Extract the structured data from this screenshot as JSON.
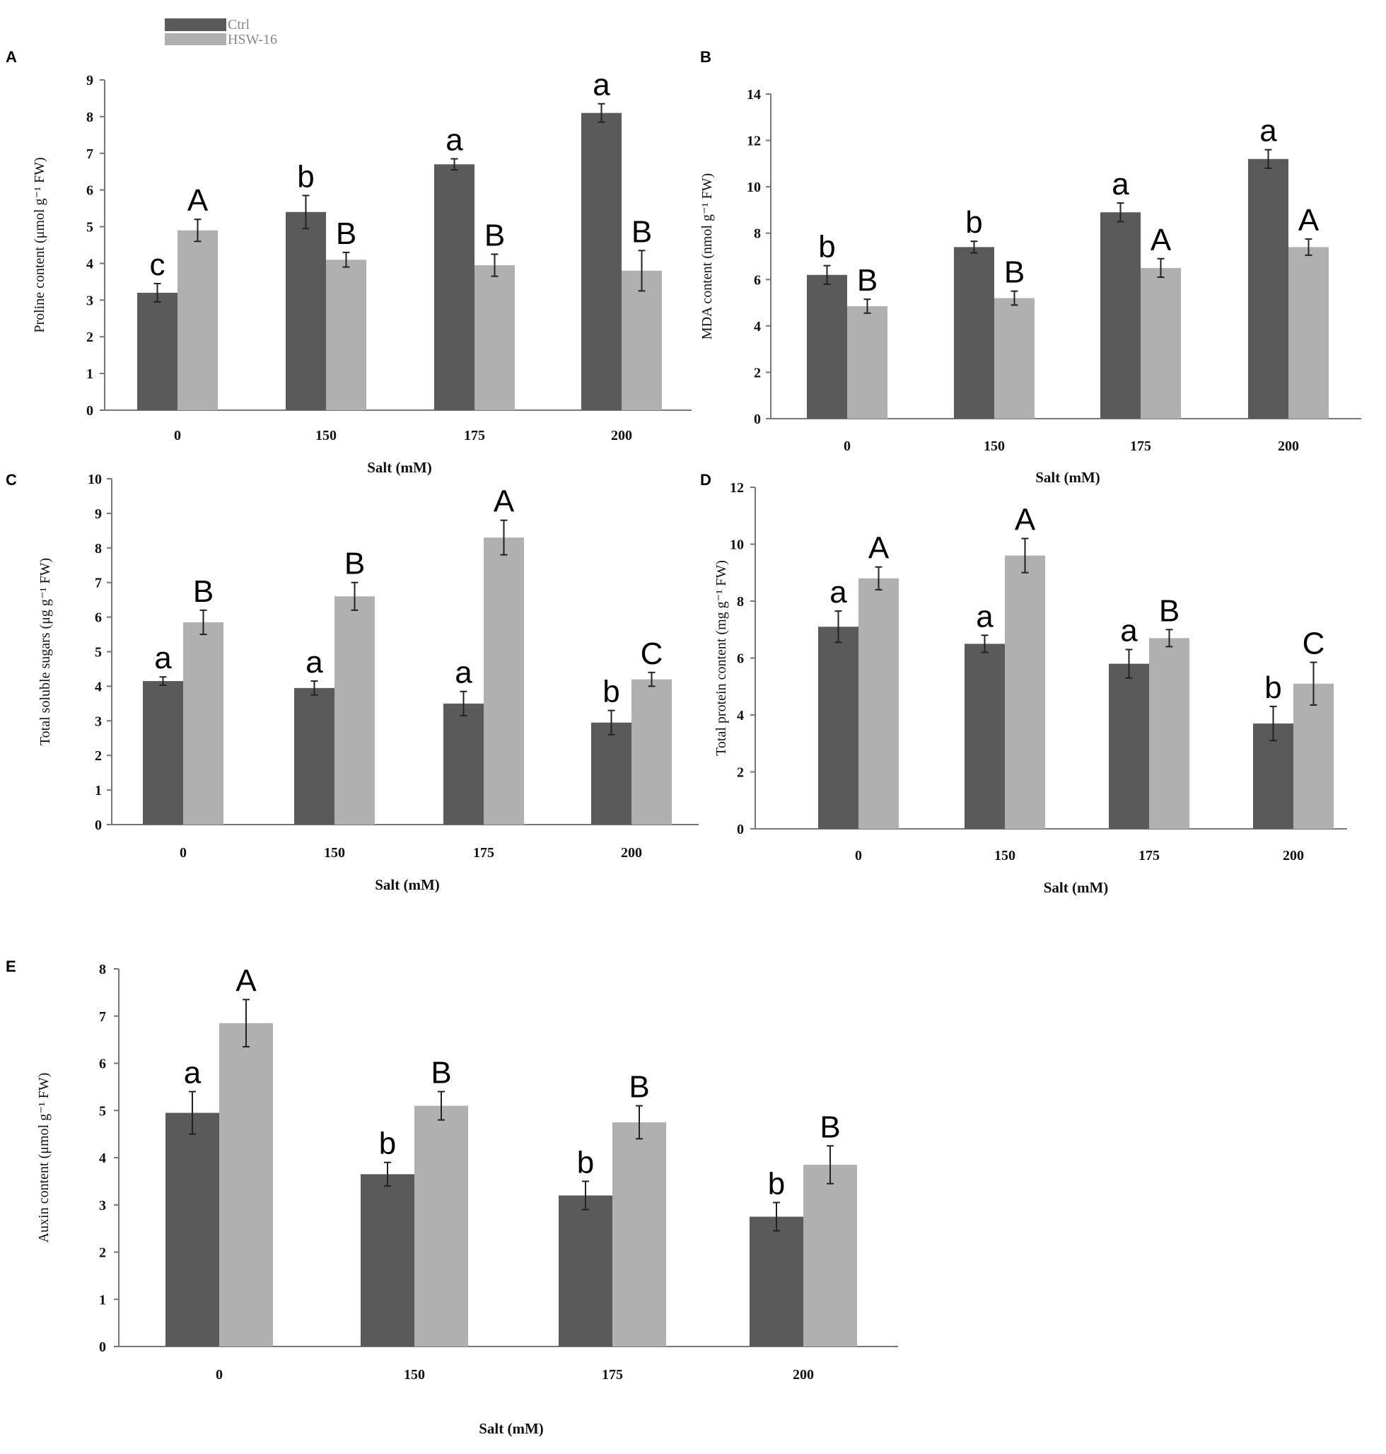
{
  "legend": {
    "series": [
      {
        "name": "Ctrl",
        "color": "#5a5a5a"
      },
      {
        "name": "HSW-16",
        "color": "#b0b0b0"
      }
    ]
  },
  "chart_data": [
    {
      "panel": "A",
      "type": "bar",
      "categories": [
        "0",
        "150",
        "175",
        "200"
      ],
      "xlabel": "Salt (mM)",
      "ylabel": "Proline content (μmol g⁻¹ FW)",
      "ylim": [
        0,
        9
      ],
      "ystep": 1,
      "series": [
        {
          "name": "Ctrl",
          "values": [
            3.2,
            5.4,
            6.7,
            8.1
          ],
          "errors": [
            0.25,
            0.45,
            0.15,
            0.25
          ],
          "letters": [
            "c",
            "b",
            "a",
            "a"
          ]
        },
        {
          "name": "HSW-16",
          "values": [
            4.9,
            4.1,
            3.95,
            3.8
          ],
          "errors": [
            0.3,
            0.2,
            0.3,
            0.55
          ],
          "letters": [
            "A",
            "B",
            "B",
            "B"
          ]
        }
      ]
    },
    {
      "panel": "B",
      "type": "bar",
      "categories": [
        "0",
        "150",
        "175",
        "200"
      ],
      "xlabel": "Salt (mM)",
      "ylabel": "MDA content (nmol g⁻¹ FW)",
      "ylim": [
        0,
        14
      ],
      "ystep": 2,
      "series": [
        {
          "name": "Ctrl",
          "values": [
            6.2,
            7.4,
            8.9,
            11.2
          ],
          "errors": [
            0.4,
            0.25,
            0.4,
            0.4
          ],
          "letters": [
            "b",
            "b",
            "a",
            "a"
          ]
        },
        {
          "name": "HSW-16",
          "values": [
            4.85,
            5.2,
            6.5,
            7.4
          ],
          "errors": [
            0.3,
            0.3,
            0.4,
            0.35
          ],
          "letters": [
            "B",
            "B",
            "A",
            "A"
          ]
        }
      ]
    },
    {
      "panel": "C",
      "type": "bar",
      "categories": [
        "0",
        "150",
        "175",
        "200"
      ],
      "xlabel": "Salt (mM)",
      "ylabel": "Total soluble sugars (μg g⁻¹ FW)",
      "ylim": [
        0,
        10
      ],
      "ystep": 1,
      "series": [
        {
          "name": "Ctrl",
          "values": [
            4.15,
            3.95,
            3.5,
            2.95
          ],
          "errors": [
            0.12,
            0.2,
            0.35,
            0.35
          ],
          "letters": [
            "a",
            "a",
            "a",
            "b"
          ]
        },
        {
          "name": "HSW-16",
          "values": [
            5.85,
            6.6,
            8.3,
            4.2
          ],
          "errors": [
            0.35,
            0.4,
            0.5,
            0.2
          ],
          "letters": [
            "B",
            "B",
            "A",
            "C"
          ]
        }
      ]
    },
    {
      "panel": "D",
      "type": "bar",
      "categories": [
        "0",
        "150",
        "175",
        "200"
      ],
      "xlabel": "Salt (mM)",
      "ylabel": "Total protein content (mg g⁻¹ FW)",
      "ylim": [
        0,
        12
      ],
      "ystep": 2,
      "series": [
        {
          "name": "Ctrl",
          "values": [
            7.1,
            6.5,
            5.8,
            3.7
          ],
          "errors": [
            0.55,
            0.3,
            0.5,
            0.6
          ],
          "letters": [
            "a",
            "a",
            "a",
            "b"
          ]
        },
        {
          "name": "HSW-16",
          "values": [
            8.8,
            9.6,
            6.7,
            5.1
          ],
          "errors": [
            0.4,
            0.6,
            0.3,
            0.75
          ],
          "letters": [
            "A",
            "A",
            "B",
            "C"
          ]
        }
      ]
    },
    {
      "panel": "E",
      "type": "bar",
      "categories": [
        "0",
        "150",
        "175",
        "200"
      ],
      "xlabel": "Salt (mM)",
      "ylabel": "Auxin content (μmol g⁻¹ FW)",
      "ylim": [
        0,
        8
      ],
      "ystep": 1,
      "series": [
        {
          "name": "Ctrl",
          "values": [
            4.95,
            3.65,
            3.2,
            2.75
          ],
          "errors": [
            0.45,
            0.25,
            0.3,
            0.3
          ],
          "letters": [
            "a",
            "b",
            "b",
            "b"
          ]
        },
        {
          "name": "HSW-16",
          "values": [
            6.85,
            5.1,
            4.75,
            3.85
          ],
          "errors": [
            0.5,
            0.3,
            0.35,
            0.4
          ],
          "letters": [
            "A",
            "B",
            "B",
            "B"
          ]
        }
      ]
    }
  ]
}
